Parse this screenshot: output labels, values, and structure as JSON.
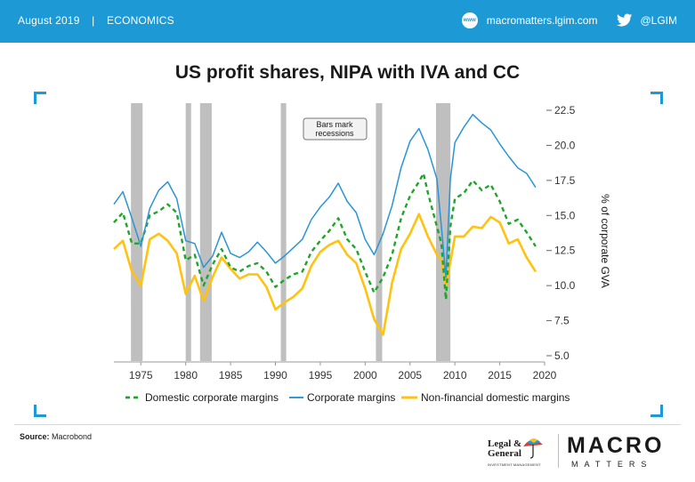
{
  "header": {
    "date": "August 2019",
    "separator": "|",
    "section": "ECONOMICS",
    "www_icon": "www",
    "website": "macromatters.lgim.com",
    "twitter_handle": "@LGIM"
  },
  "footer": {
    "source_label": "Source:",
    "source_value": "Macrobond",
    "lg_line1": "Legal &",
    "lg_line2": "General",
    "lg_sub": "INVESTMENT MANAGEMENT",
    "brand_macro": "MACRO",
    "brand_matters": "MATTERS"
  },
  "colors": {
    "accent": "#1d9ad6",
    "domestic": "#1ea62a",
    "corporate": "#2a94d6",
    "nonfinancial": "#ffc20e",
    "recession": "#bfbfbf"
  },
  "chart_data": {
    "type": "line",
    "title": "US profit shares, NIPA with IVA and CC",
    "ylabel": "% of corporate GVA",
    "annotation": "Bars mark recessions",
    "annotation_lines": [
      "Bars mark",
      "recessions"
    ],
    "xlim": [
      1972,
      2020
    ],
    "ylim": [
      5.0,
      22.5
    ],
    "y_axis_side": "right",
    "x_ticks": [
      1975,
      1980,
      1985,
      1990,
      1995,
      2000,
      2005,
      2010,
      2015,
      2020
    ],
    "y_ticks": [
      "5.0",
      "7.5",
      "10.0",
      "12.5",
      "15.0",
      "17.5",
      "20.0",
      "22.5"
    ],
    "legend_position": "bottom",
    "recessions": [
      [
        1973.9,
        1975.2
      ],
      [
        1980.0,
        1980.6
      ],
      [
        1981.6,
        1982.9
      ],
      [
        1990.6,
        1991.2
      ],
      [
        2001.2,
        2001.9
      ],
      [
        2007.9,
        2009.5
      ]
    ],
    "series": [
      {
        "name": "Domestic corporate margins",
        "style": "dashed",
        "x": [
          1972,
          1973,
          1974,
          1975,
          1976,
          1977,
          1978,
          1979,
          1980,
          1981,
          1982,
          1983,
          1984,
          1985,
          1986,
          1987,
          1988,
          1989,
          1990,
          1991,
          1992,
          1993,
          1994,
          1995,
          1996,
          1997,
          1998,
          1999,
          2000,
          2001,
          2002,
          2003,
          2004,
          2005,
          2006,
          2006.5,
          2007,
          2008,
          2008.5,
          2009,
          2009.5,
          2010,
          2011,
          2012,
          2013,
          2014,
          2015,
          2016,
          2017,
          2018,
          2019
        ],
        "y": [
          14.5,
          15.2,
          13.0,
          13.0,
          15.0,
          15.3,
          15.8,
          15.2,
          11.8,
          12.2,
          10.0,
          11.5,
          12.6,
          11.3,
          11.0,
          11.4,
          11.6,
          11.0,
          9.9,
          10.4,
          10.8,
          11.0,
          12.4,
          13.2,
          13.9,
          14.8,
          13.3,
          12.6,
          11.0,
          9.5,
          10.6,
          12.2,
          14.8,
          16.4,
          17.4,
          18.0,
          16.6,
          14.2,
          13.0,
          9.0,
          14.2,
          16.2,
          16.6,
          17.5,
          16.8,
          17.2,
          16.0,
          14.4,
          14.7,
          13.8,
          12.8
        ]
      },
      {
        "name": "Corporate margins",
        "style": "solid",
        "x": [
          1972,
          1973,
          1974,
          1975,
          1976,
          1977,
          1978,
          1979,
          1980,
          1981,
          1982,
          1983,
          1984,
          1985,
          1986,
          1987,
          1988,
          1989,
          1990,
          1991,
          1992,
          1993,
          1994,
          1995,
          1996,
          1997,
          1998,
          1999,
          2000,
          2001,
          2002,
          2003,
          2004,
          2005,
          2006,
          2007,
          2008,
          2008.5,
          2009,
          2009.5,
          2010,
          2011,
          2012,
          2013,
          2014,
          2015,
          2016,
          2017,
          2018,
          2019
        ],
        "y": [
          15.8,
          16.7,
          14.8,
          12.8,
          15.5,
          16.8,
          17.4,
          16.2,
          13.2,
          13.0,
          11.3,
          12.1,
          13.8,
          12.3,
          12.0,
          12.4,
          13.1,
          12.4,
          11.6,
          12.1,
          12.7,
          13.3,
          14.7,
          15.6,
          16.3,
          17.3,
          16.0,
          15.2,
          13.3,
          12.2,
          13.7,
          15.7,
          18.4,
          20.3,
          21.2,
          19.7,
          17.6,
          14.2,
          10.6,
          17.6,
          20.2,
          21.3,
          22.2,
          21.6,
          21.1,
          20.1,
          19.2,
          18.4,
          18.0,
          17.0
        ]
      },
      {
        "name": "Non-financial domestic margins",
        "style": "solid",
        "x": [
          1972,
          1973,
          1974,
          1975,
          1976,
          1977,
          1978,
          1979,
          1980,
          1981,
          1982,
          1983,
          1984,
          1985,
          1986,
          1987,
          1988,
          1989,
          1990,
          1991,
          1992,
          1993,
          1994,
          1995,
          1996,
          1997,
          1998,
          1999,
          2000,
          2001,
          2002,
          2003,
          2004,
          2005,
          2006,
          2007,
          2008,
          2008.5,
          2009,
          2010,
          2011,
          2012,
          2013,
          2014,
          2015,
          2016,
          2017,
          2018,
          2019
        ],
        "y": [
          12.6,
          13.2,
          11.0,
          10.0,
          13.3,
          13.7,
          13.2,
          12.3,
          9.4,
          10.7,
          8.9,
          10.6,
          12.0,
          11.2,
          10.5,
          10.8,
          10.8,
          9.9,
          8.3,
          8.8,
          9.2,
          9.8,
          11.4,
          12.4,
          12.9,
          13.2,
          12.2,
          11.6,
          9.8,
          7.6,
          6.5,
          10.2,
          12.6,
          13.7,
          15.1,
          13.5,
          12.2,
          11.8,
          9.9,
          13.5,
          13.5,
          14.2,
          14.1,
          14.9,
          14.5,
          13.0,
          13.3,
          12.0,
          11.0
        ]
      }
    ]
  }
}
